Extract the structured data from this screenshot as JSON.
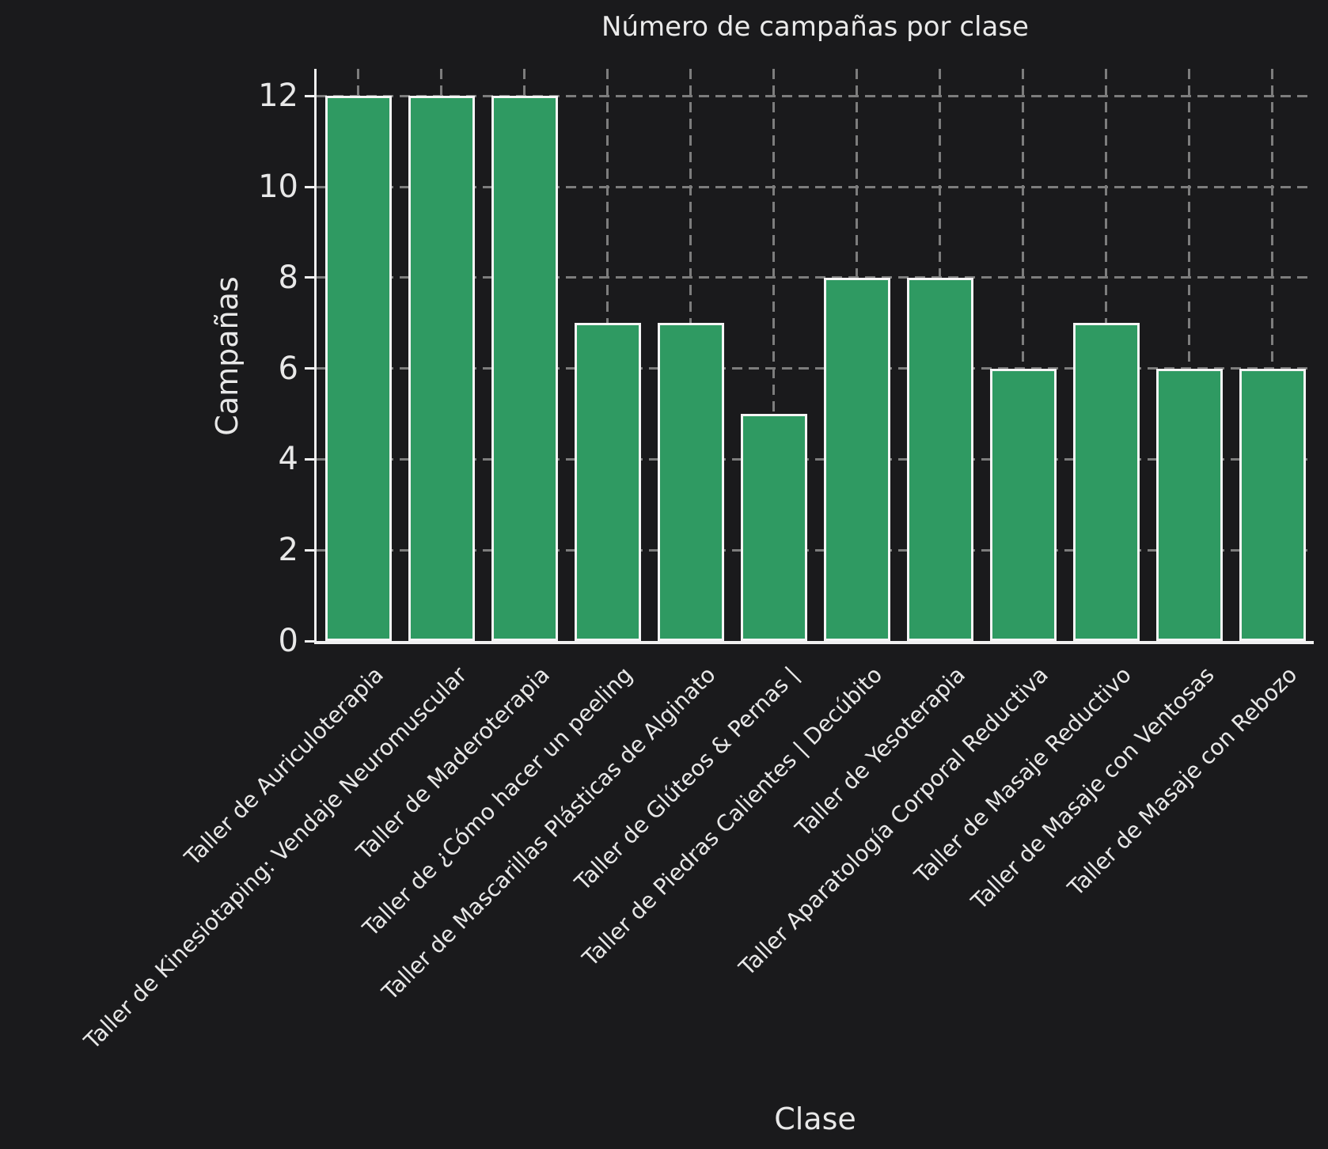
{
  "chart_data": {
    "type": "bar",
    "title": "Número de campañas por clase",
    "xlabel": "Clase",
    "ylabel": "Campañas",
    "categories": [
      "Taller de Auriculoterapia",
      "Taller de Kinesiotaping: Vendaje Neuromuscular",
      "Taller de Maderoterapia",
      "Taller de ¿Cómo hacer un peeling",
      "Taller de Mascarillas Plásticas de Alginato",
      "Taller de Glúteos & Pernas |",
      "Taller de Piedras Calientes | Decúbito",
      "Taller de Yesoterapia",
      "Taller Aparatología Corporal Reductiva",
      "Taller de Masaje Reductivo",
      "Taller de Masaje con Ventosas",
      "Taller de Masaje con Rebozo"
    ],
    "values": [
      12,
      12,
      12,
      7,
      7,
      5,
      8,
      8,
      6,
      7,
      6,
      6
    ],
    "yticks": [
      0,
      2,
      4,
      6,
      8,
      10,
      12
    ],
    "ylim": [
      0,
      12.6
    ],
    "grid": "dashed-both-axes",
    "legend": "none",
    "colors": {
      "background": "#1a1a1c",
      "bar_fill": "#2f9a62",
      "bar_edge": "#f5f5f5",
      "grid": "#7d7d7d",
      "spine": "#f0f0f0",
      "text": "#e8e8e8"
    }
  }
}
